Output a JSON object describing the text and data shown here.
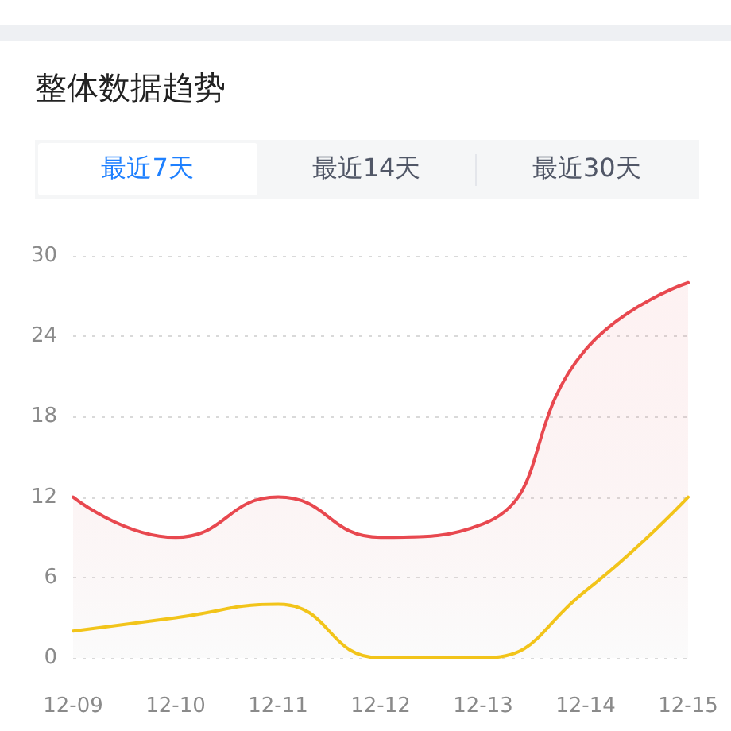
{
  "chart_data": {
    "type": "line",
    "title": "整体数据趋势",
    "annotations": [
      "最近7天",
      "最近14天",
      "最近30天"
    ],
    "categories": [
      "12-09",
      "12-10",
      "12-11",
      "12-12",
      "12-13",
      "12-14",
      "12-15"
    ],
    "series": [
      {
        "type": "area",
        "color": "#e8484f",
        "values": [
          12,
          9,
          12,
          9,
          10,
          23,
          28
        ]
      },
      {
        "type": "line",
        "color": "#f2c41a",
        "values": [
          2,
          3,
          4,
          0,
          0,
          5,
          12
        ]
      }
    ],
    "ylim": [
      0,
      30
    ],
    "yticks": [
      0,
      6,
      12,
      18,
      24,
      30
    ],
    "grid": "y",
    "marker": "none"
  }
}
